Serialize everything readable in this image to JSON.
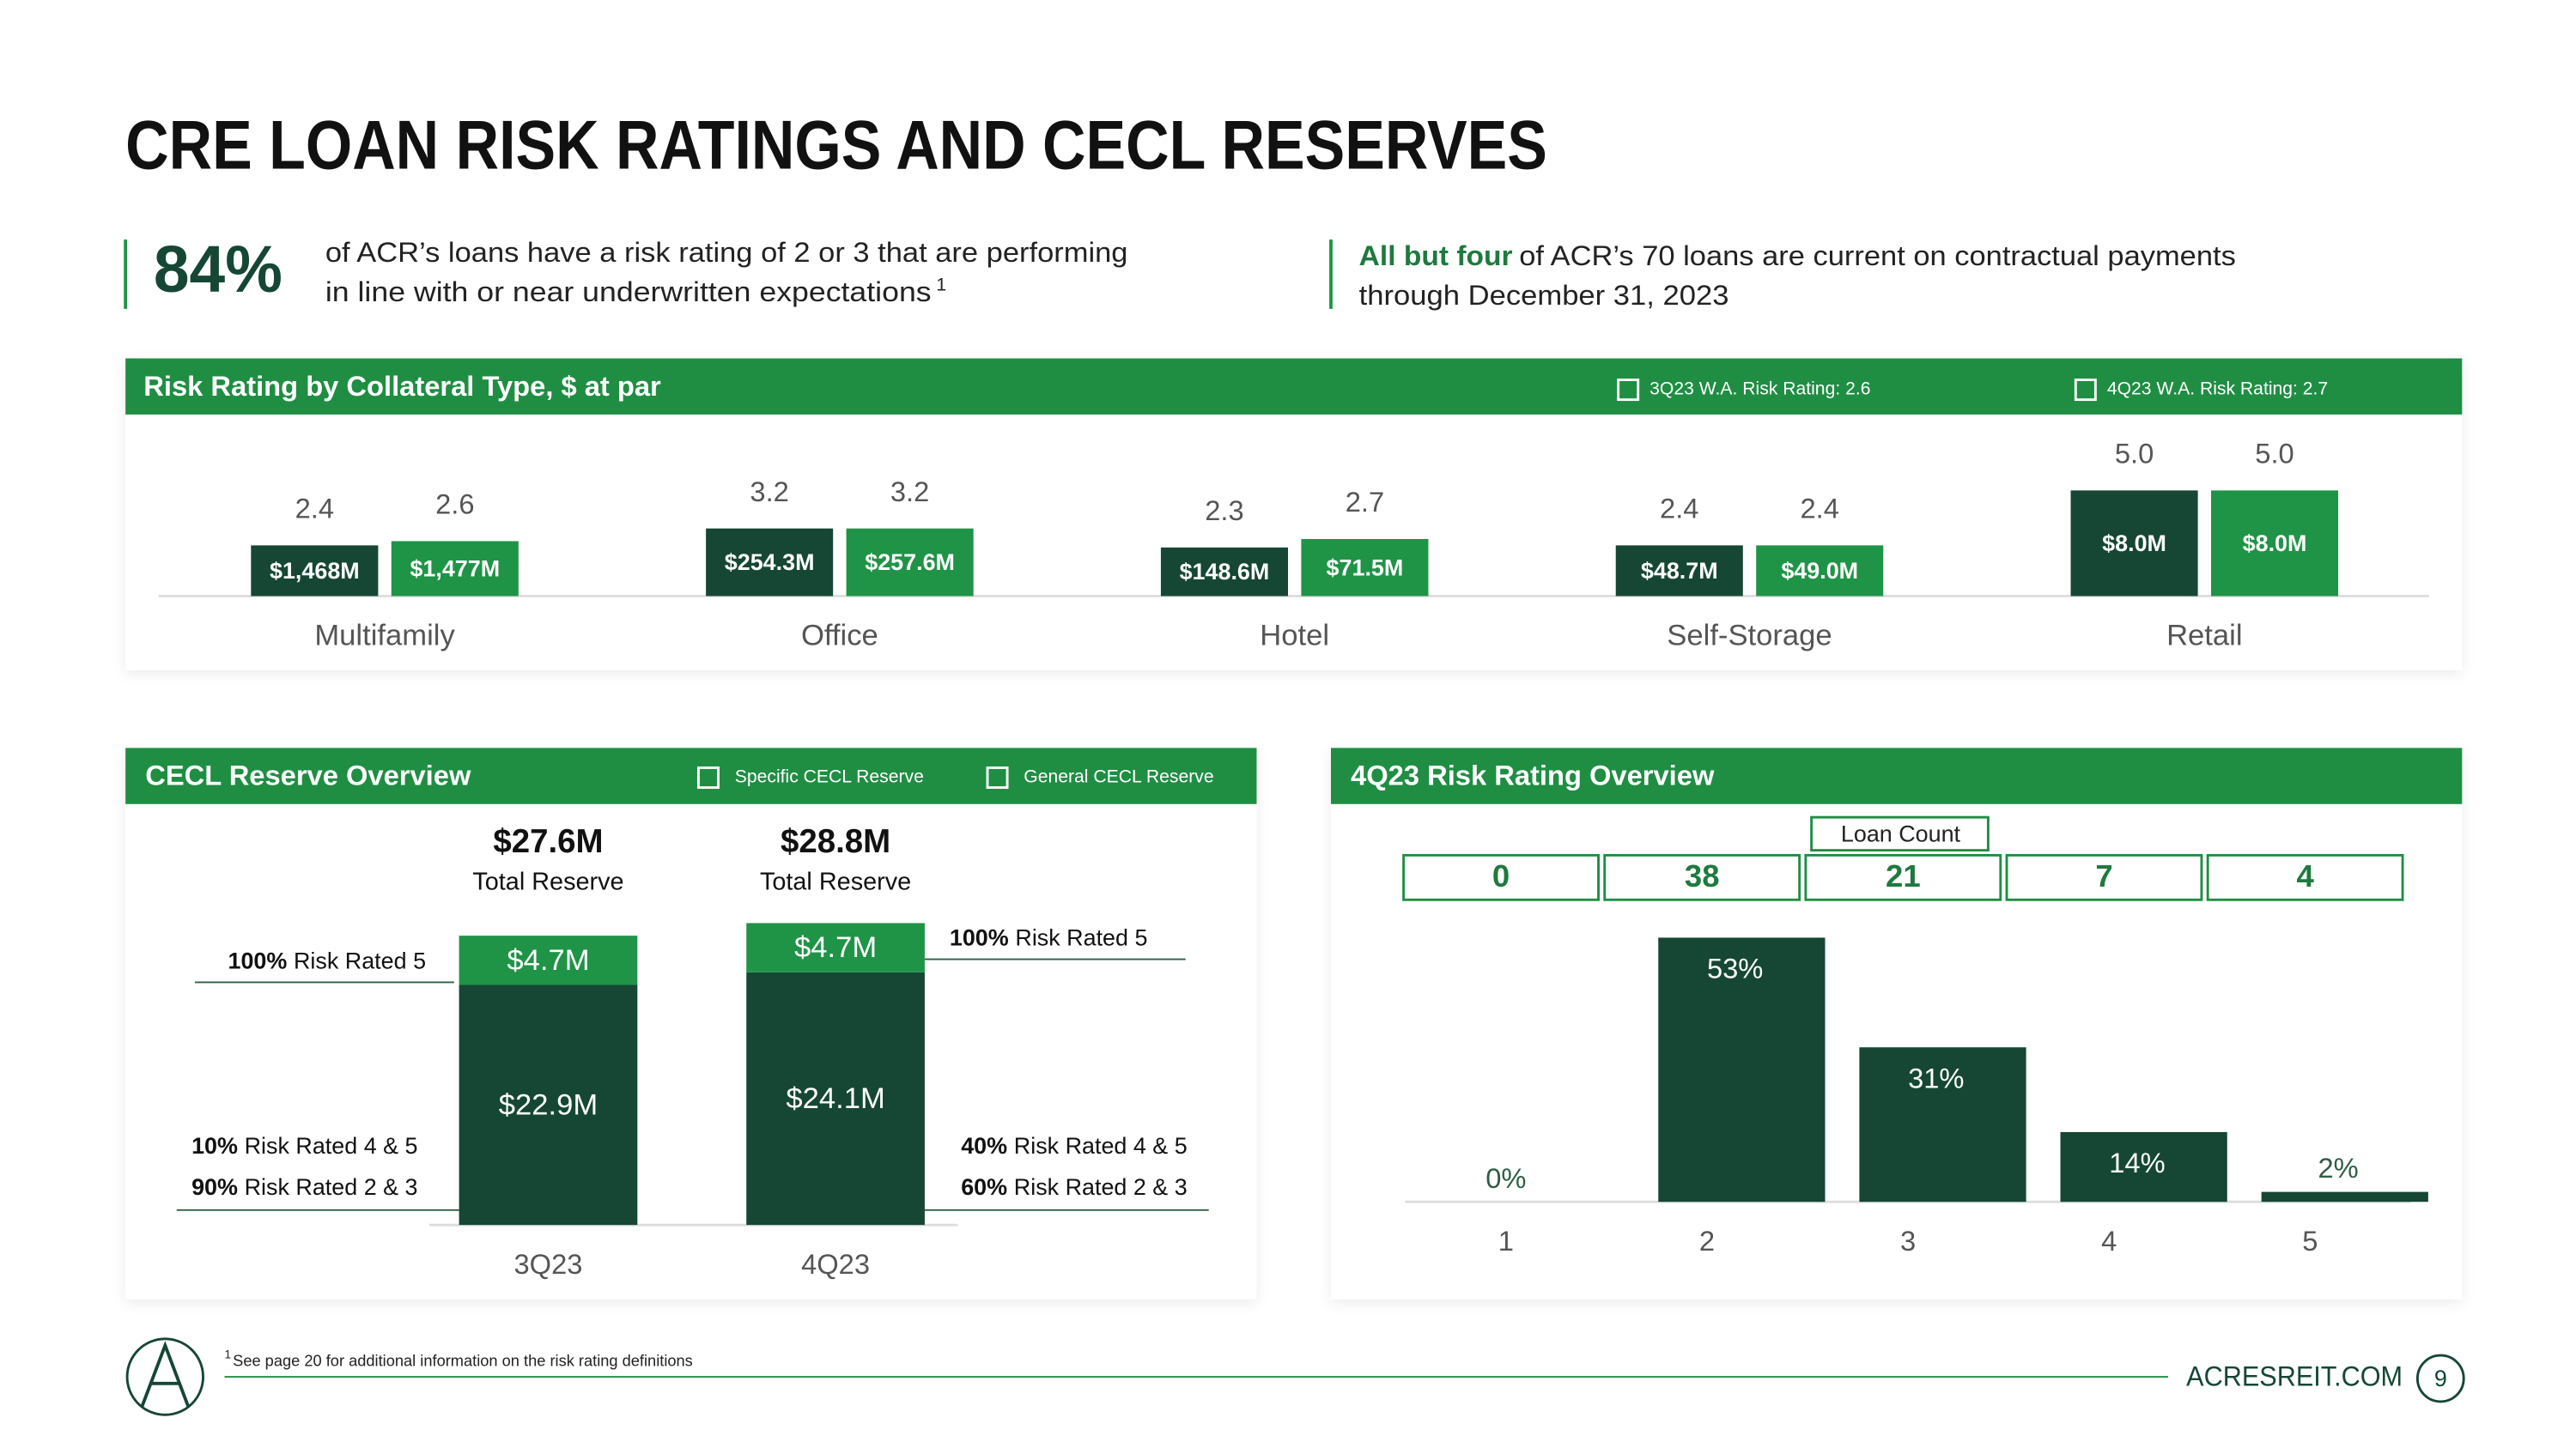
{
  "header": {
    "title": "CRE LOAN RISK RATINGS AND CECL RESERVES"
  },
  "callouts": [
    {
      "highlight": "84%",
      "lines": [
        "of ACR’s loans have a risk rating of 2 or 3 that are performing",
        "in line with or near underwritten expectations"
      ],
      "footnote_ref": "1"
    },
    {
      "highlight": "All but four",
      "lines": [
        "of ACR’s 70 loans are current on contractual payments",
        "through December 31, 2023"
      ]
    }
  ],
  "chart_data": [
    {
      "type": "bar",
      "title": "Risk Rating by Collateral Type, $ at par",
      "categories": [
        "Multifamily",
        "Office",
        "Hotel",
        "Self-Storage",
        "Retail"
      ],
      "series": [
        {
          "name": "3Q23 W.A. Risk Rating: 2.6",
          "color": "#154734",
          "values": [
            2.4,
            3.2,
            2.3,
            2.4,
            5.0
          ],
          "value_labels": [
            "2.4",
            "3.2",
            "2.3",
            "2.4",
            "5.0"
          ],
          "par_labels": [
            "$1,468M",
            "$254.3M",
            "$148.6M",
            "$48.7M",
            "$8.0M"
          ]
        },
        {
          "name": "4Q23 W.A. Risk Rating: 2.7",
          "color": "#1f9446",
          "values": [
            2.6,
            3.2,
            2.7,
            2.4,
            5.0
          ],
          "value_labels": [
            "2.6",
            "3.2",
            "2.7",
            "2.4",
            "5.0"
          ],
          "par_labels": [
            "$1,477M",
            "$257.6M",
            "$71.5M",
            "$49.0M",
            "$8.0M"
          ]
        }
      ]
    },
    {
      "type": "stacked_bar",
      "title": "CECL Reserve Overview",
      "categories": [
        "3Q23",
        "4Q23"
      ],
      "series": [
        {
          "name": "General CECL Reserve",
          "color": "#154734",
          "values": [
            22.9,
            24.1
          ],
          "value_labels": [
            "$22.9M",
            "$24.1M"
          ]
        },
        {
          "name": "Specific CECL Reserve",
          "color": "#1f9446",
          "values": [
            4.7,
            4.7
          ],
          "value_labels": [
            "$4.7M",
            "$4.7M"
          ]
        }
      ],
      "totals": {
        "label": "Total Reserve",
        "values": [
          27.6,
          28.8
        ],
        "value_labels": [
          "$27.6M",
          "$28.8M"
        ]
      },
      "annotations": [
        {
          "specific": {
            "emphasis": "100%",
            "text": "Risk Rated 5"
          },
          "general": [
            {
              "emphasis": "10%",
              "text": "Risk Rated 4 & 5"
            },
            {
              "emphasis": "90%",
              "text": "Risk Rated 2 & 3"
            }
          ]
        },
        {
          "specific": {
            "emphasis": "100%",
            "text": "Risk Rated 5"
          },
          "general": [
            {
              "emphasis": "40%",
              "text": "Risk Rated 4 & 5"
            },
            {
              "emphasis": "60%",
              "text": "Risk Rated 2 & 3"
            }
          ]
        }
      ]
    },
    {
      "type": "bar",
      "title": "4Q23 Risk Rating Overview",
      "categories": [
        "1",
        "2",
        "3",
        "4",
        "5"
      ],
      "values": [
        0,
        53,
        31,
        14,
        2
      ],
      "value_labels": [
        "0%",
        "53%",
        "31%",
        "14%",
        "2%"
      ],
      "color": "#154734",
      "loan_count": {
        "label": "Loan Count",
        "values": [
          0,
          38,
          21,
          7,
          4
        ]
      }
    }
  ],
  "footer": {
    "footnote_marker": "1",
    "footnote": "See page 20 for additional information on the risk rating definitions",
    "site": "ACRESREIT.COM",
    "page": 9
  }
}
